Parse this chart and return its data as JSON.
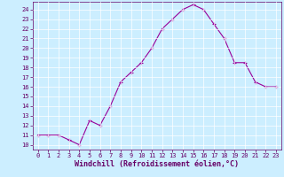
{
  "x": [
    0,
    1,
    2,
    3,
    4,
    5,
    6,
    7,
    8,
    9,
    10,
    11,
    12,
    13,
    14,
    15,
    16,
    17,
    18,
    19,
    20,
    21,
    22,
    23
  ],
  "y": [
    11,
    11,
    11,
    10.5,
    10,
    12.5,
    12,
    14,
    16.5,
    17.5,
    18.5,
    20,
    22,
    23,
    24,
    24.5,
    24,
    22.5,
    21,
    18.5,
    18.5,
    16.5,
    16,
    16
  ],
  "line_color": "#990099",
  "marker": "+",
  "marker_size": 3,
  "marker_color": "#990099",
  "bg_color": "#cceeff",
  "grid_color": "#ffffff",
  "xlabel": "Windchill (Refroidissement éolien,°C)",
  "xlabel_color": "#660066",
  "xlim": [
    -0.5,
    23.5
  ],
  "ylim": [
    9.5,
    24.8
  ],
  "yticks": [
    10,
    11,
    12,
    13,
    14,
    15,
    16,
    17,
    18,
    19,
    20,
    21,
    22,
    23,
    24
  ],
  "xticks": [
    0,
    1,
    2,
    3,
    4,
    5,
    6,
    7,
    8,
    9,
    10,
    11,
    12,
    13,
    14,
    15,
    16,
    17,
    18,
    19,
    20,
    21,
    22,
    23
  ],
  "tick_color": "#660066",
  "tick_fontsize": 5,
  "xlabel_fontsize": 6
}
